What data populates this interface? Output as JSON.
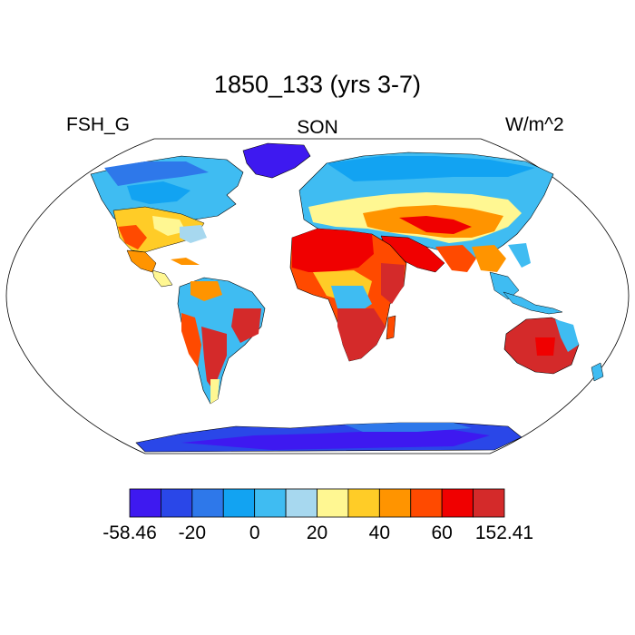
{
  "title": "1850_133 (yrs 3-7)",
  "left_label": "FSH_G",
  "center_label": "SON",
  "right_label": "W/m^2",
  "colorbar": {
    "colors": [
      "#3e19f0",
      "#2a47e8",
      "#2e78ea",
      "#12a3f2",
      "#3fbcf2",
      "#a7d8ef",
      "#fff792",
      "#ffcc27",
      "#ff9400",
      "#ff4a00",
      "#f00000",
      "#d42a2a"
    ],
    "labels": [
      {
        "text": "-58.46",
        "boundary": 0
      },
      {
        "text": "-20",
        "boundary": 2
      },
      {
        "text": "0",
        "boundary": 4
      },
      {
        "text": "20",
        "boundary": 6
      },
      {
        "text": "40",
        "boundary": 8
      },
      {
        "text": "60",
        "boundary": 10
      },
      {
        "text": "152.41",
        "boundary": 12
      }
    ]
  },
  "ocean_color": "#ffffff",
  "coastline_color": "#000000"
}
